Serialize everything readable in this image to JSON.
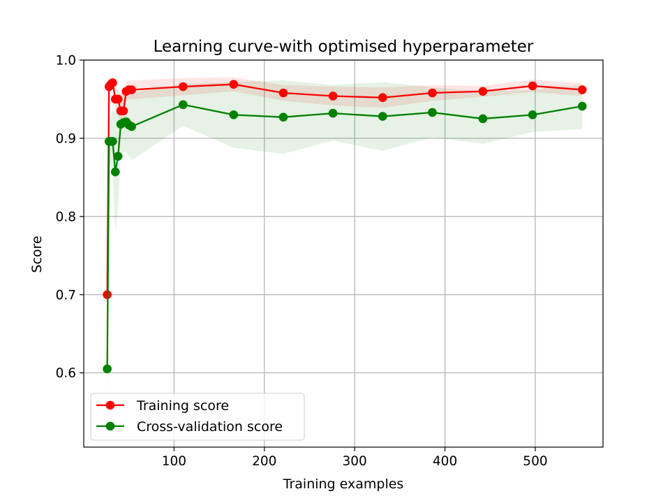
{
  "chart_data": {
    "type": "line",
    "title": "Learning curve-with optimised hyperparameter",
    "xlabel": "Training examples",
    "ylabel": "Score",
    "xlim": [
      0,
      575
    ],
    "ylim": [
      0.505,
      1.0
    ],
    "xticks": [
      100,
      200,
      300,
      400,
      500
    ],
    "yticks": [
      0.6,
      0.7,
      0.8,
      0.9,
      1.0
    ],
    "xtick_labels": [
      "100",
      "200",
      "300",
      "400",
      "500"
    ],
    "ytick_labels": [
      "0.6",
      "0.7",
      "0.8",
      "0.9",
      "1.0"
    ],
    "grid": true,
    "legend_position": "lower-left",
    "x": [
      26,
      28,
      30,
      32,
      35,
      38,
      41,
      44,
      47,
      50,
      53,
      110,
      166,
      221,
      276,
      331,
      386,
      442,
      497,
      552
    ],
    "series": [
      {
        "name": "Training score",
        "color": "#ff0000",
        "values": [
          0.7,
          0.966,
          0.969,
          0.971,
          0.95,
          0.95,
          0.935,
          0.935,
          0.96,
          0.962,
          0.962,
          0.966,
          0.969,
          0.958,
          0.954,
          0.952,
          0.958,
          0.96,
          0.967,
          0.962
        ],
        "band_upper": [
          0.702,
          0.975,
          0.975,
          0.976,
          0.963,
          0.963,
          0.958,
          0.958,
          0.973,
          0.974,
          0.974,
          0.977,
          0.978,
          0.968,
          0.966,
          0.965,
          0.968,
          0.967,
          0.975,
          0.97
        ],
        "band_lower": [
          0.698,
          0.957,
          0.963,
          0.966,
          0.937,
          0.937,
          0.912,
          0.912,
          0.947,
          0.95,
          0.95,
          0.955,
          0.96,
          0.948,
          0.942,
          0.939,
          0.948,
          0.953,
          0.959,
          0.954
        ]
      },
      {
        "name": "Cross-validation score",
        "color": "#008000",
        "values": [
          0.605,
          0.896,
          0.896,
          0.896,
          0.857,
          0.877,
          0.918,
          0.92,
          0.921,
          0.917,
          0.915,
          0.943,
          0.93,
          0.927,
          0.932,
          0.928,
          0.933,
          0.925,
          0.93,
          0.941
        ],
        "band_upper": [
          0.66,
          0.92,
          0.93,
          0.935,
          0.935,
          0.945,
          0.955,
          0.958,
          0.96,
          0.958,
          0.958,
          0.97,
          0.972,
          0.974,
          0.968,
          0.972,
          0.965,
          0.96,
          0.962,
          0.968
        ],
        "band_lower": [
          0.55,
          0.872,
          0.862,
          0.857,
          0.78,
          0.81,
          0.88,
          0.882,
          0.882,
          0.876,
          0.872,
          0.916,
          0.888,
          0.88,
          0.897,
          0.884,
          0.901,
          0.893,
          0.908,
          0.912
        ]
      }
    ]
  }
}
